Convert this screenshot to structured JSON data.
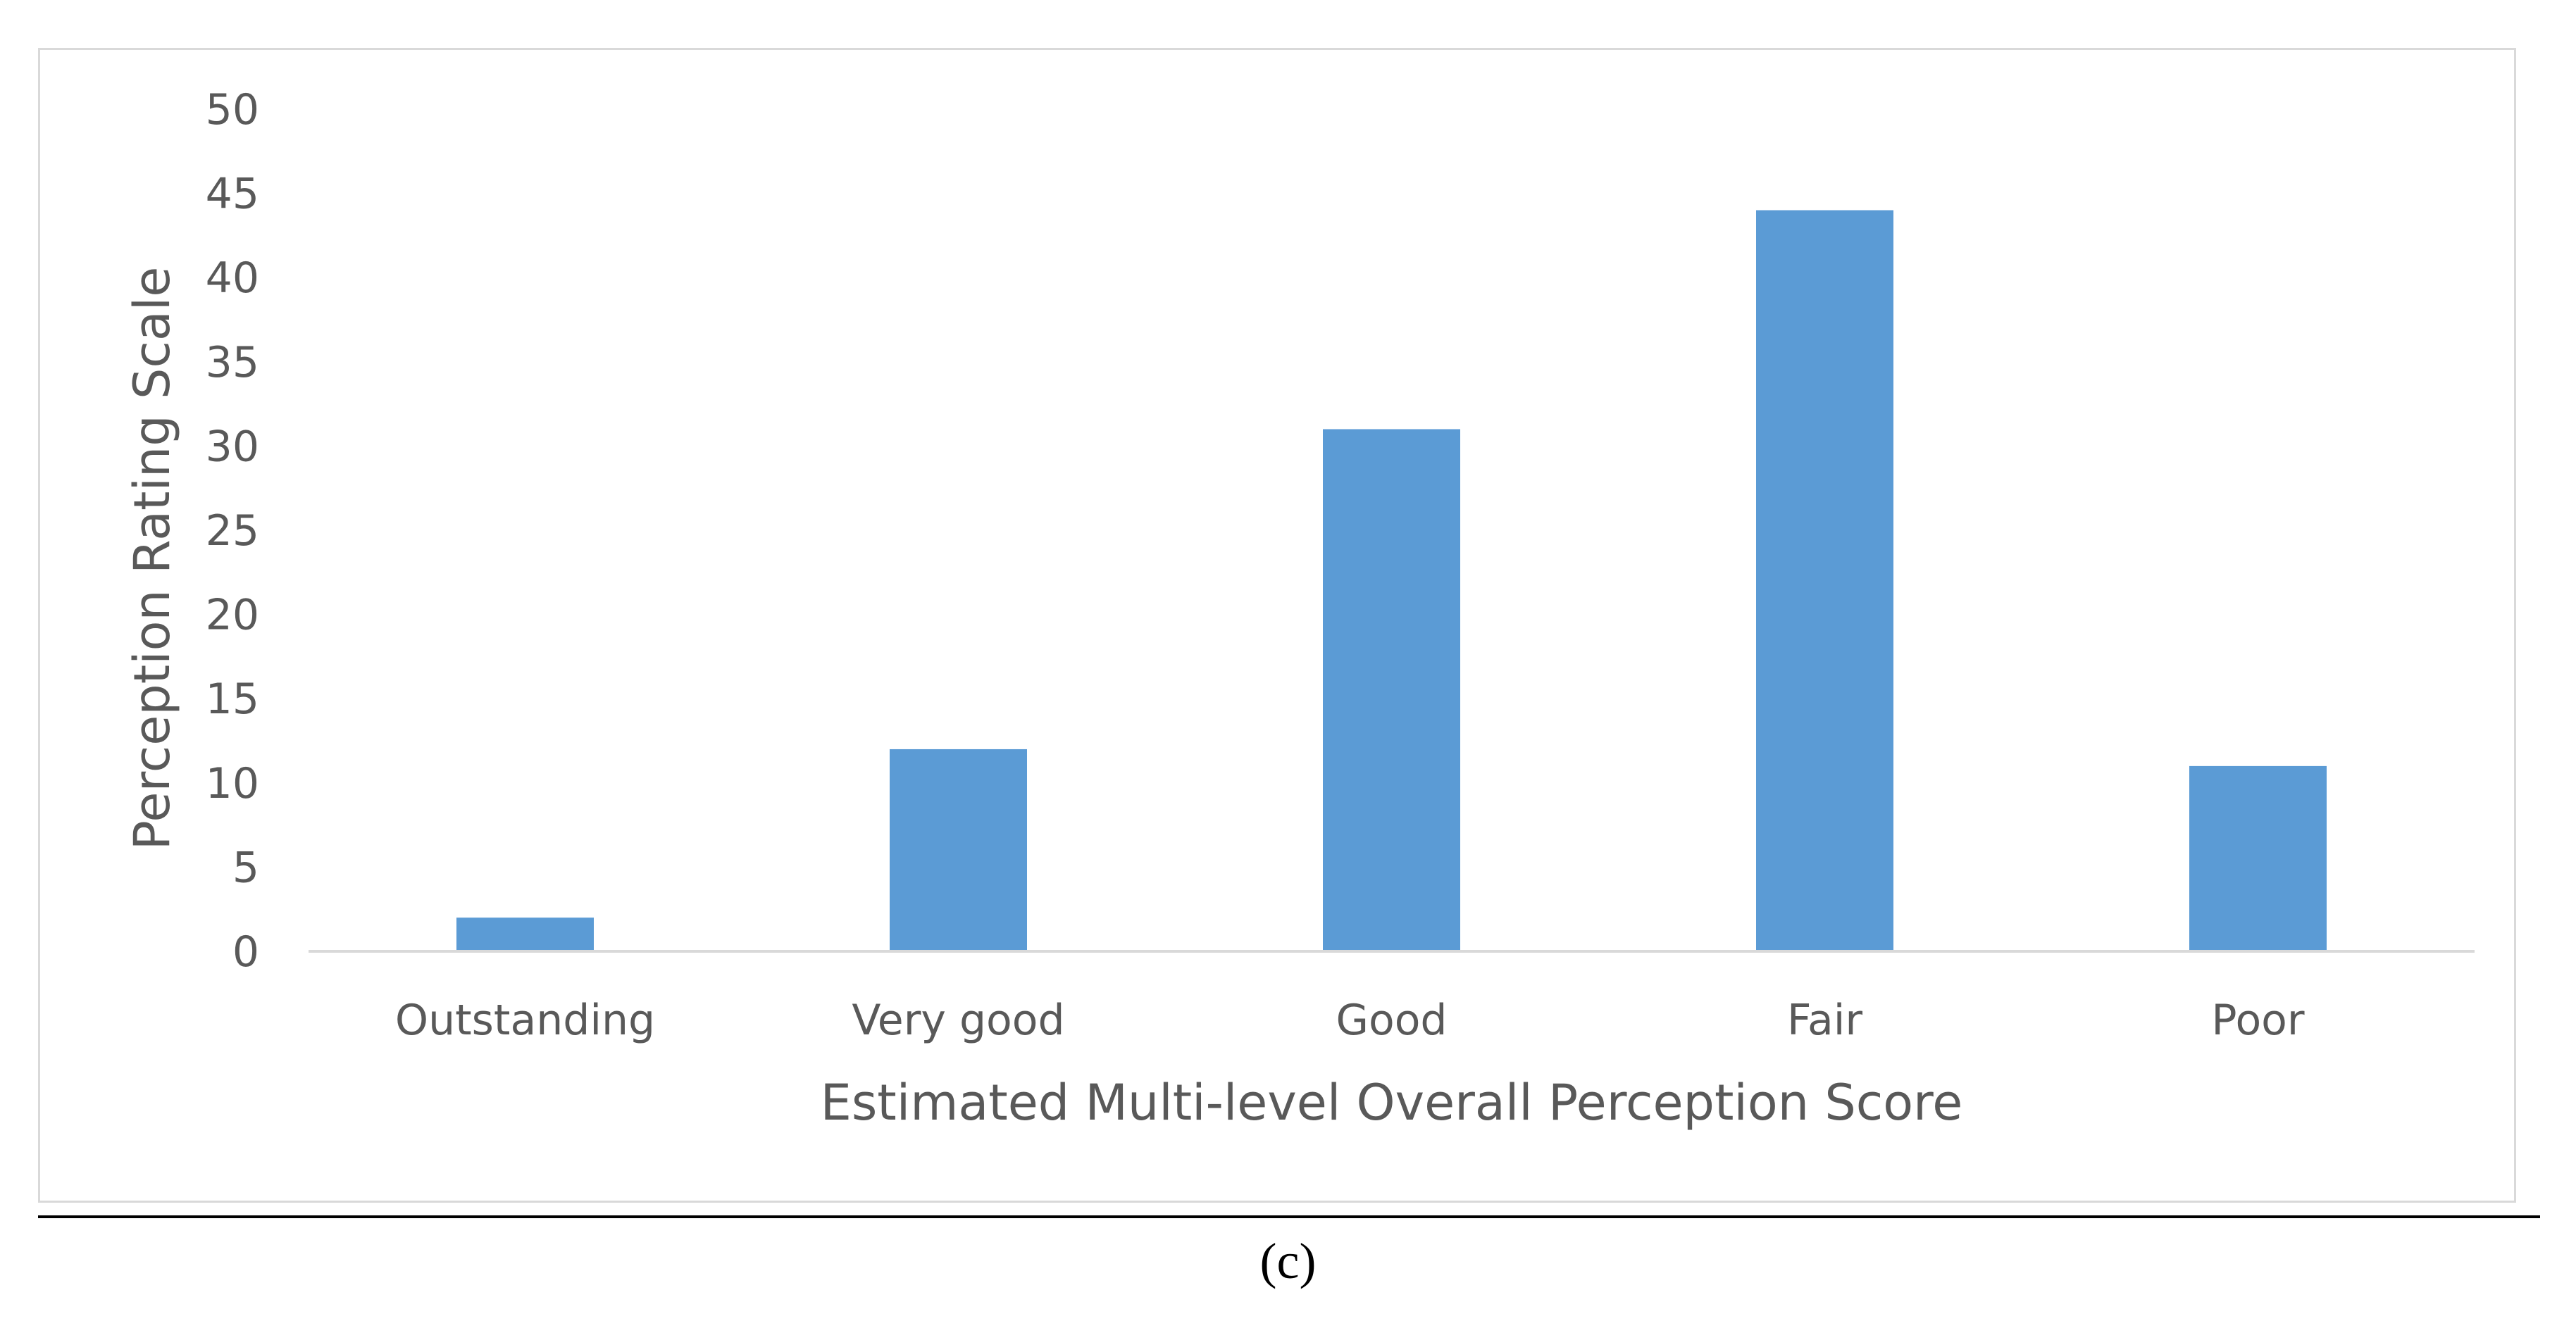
{
  "caption": "(c)",
  "chart_data": {
    "type": "bar",
    "categories": [
      "Outstanding",
      "Very good",
      "Good",
      "Fair",
      "Poor"
    ],
    "values": [
      2,
      12,
      31,
      44,
      11
    ],
    "title": "",
    "xlabel": "Estimated Multi-level Overall Perception Score",
    "ylabel": "Perception Rating Scale",
    "ylim": [
      0,
      50
    ],
    "yticks": [
      0,
      5,
      10,
      15,
      20,
      25,
      30,
      35,
      40,
      45,
      50
    ],
    "grid": false,
    "legend": "none",
    "bar_color": "#5b9bd5",
    "axis_color": "#d9d9d9",
    "text_color": "#595959"
  }
}
